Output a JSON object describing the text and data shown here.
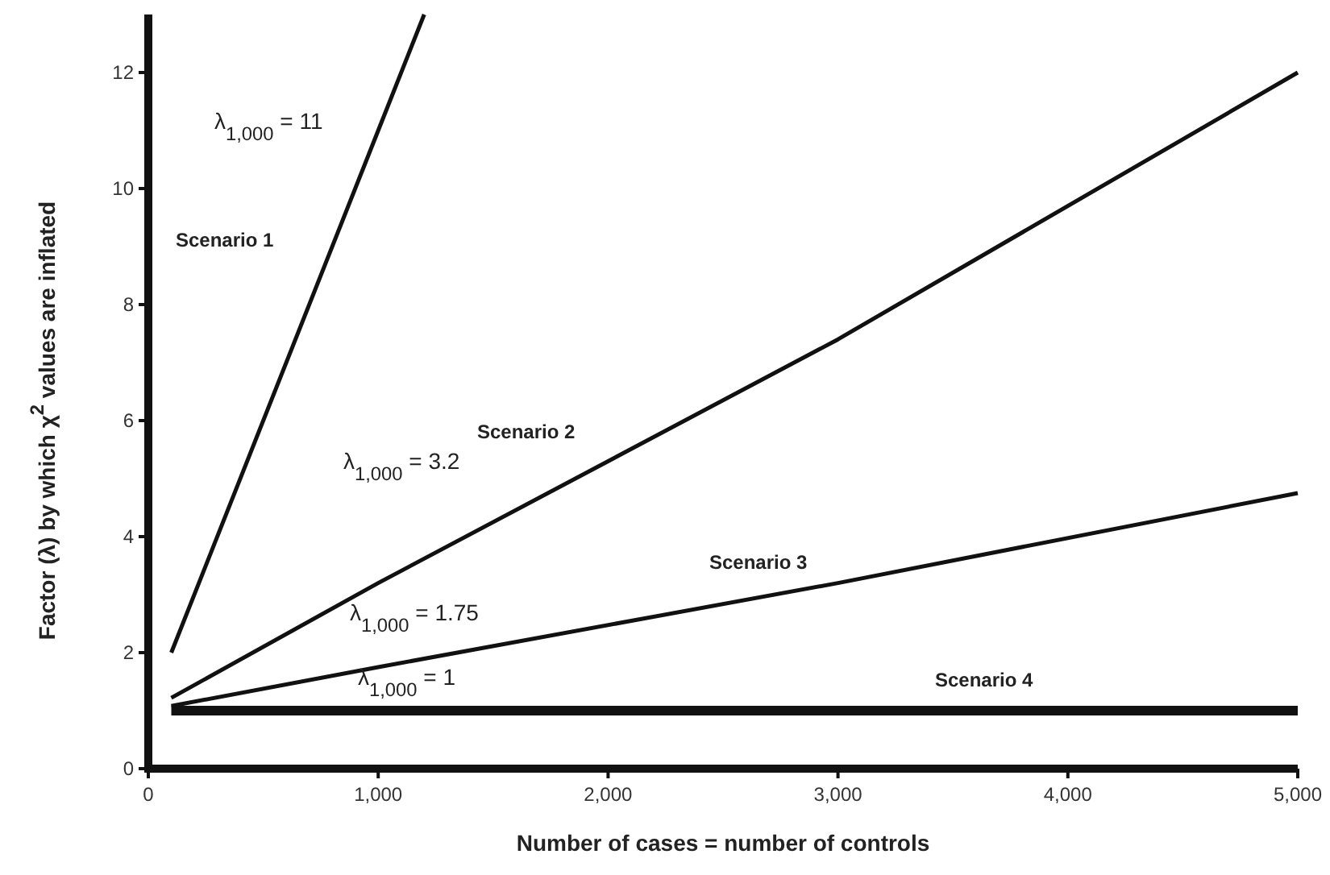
{
  "chart_data": {
    "type": "line",
    "xlabel": "Number of cases = number of controls",
    "ylabel": "Factor (λ) by which χ$^{2}$ values are inflated",
    "xlim": [
      0,
      5000
    ],
    "ylim": [
      0,
      13
    ],
    "xticks": [
      0,
      {
        "value": 1000,
        "label": "1,000"
      },
      {
        "value": 2000,
        "label": "2,000"
      },
      {
        "value": 3000,
        "label": "3,000"
      },
      {
        "value": 4000,
        "label": "4,000"
      },
      {
        "value": 5000,
        "label": "5,000"
      }
    ],
    "yticks": [
      0,
      2,
      4,
      6,
      8,
      10,
      12
    ],
    "grid": false,
    "marker": "none",
    "line_style": "solid",
    "series": [
      {
        "name": "Scenario 1",
        "color": "#111111",
        "x": [
          100,
          1000,
          1200
        ],
        "values": [
          2,
          11,
          13
        ]
      },
      {
        "name": "Scenario 2",
        "color": "#111111",
        "x": [
          100,
          1000,
          3000,
          5000
        ],
        "values": [
          1.22,
          3.2,
          7.4,
          12
        ]
      },
      {
        "name": "Scenario 3",
        "color": "#111111",
        "x": [
          100,
          1000,
          3000,
          5000
        ],
        "values": [
          1.08,
          1.75,
          3.2,
          4.75
        ]
      },
      {
        "name": "Scenario 4",
        "color": "#111111",
        "x": [
          100,
          1000,
          3000,
          5000
        ],
        "values": [
          1,
          1,
          1,
          1
        ]
      }
    ],
    "annotations": [
      "λ$_{1,000}$ = 11",
      "λ$_{1,000}$ = 3.2",
      "λ$_{1,000}$ = 1.75",
      "λ$_{1,000}$ = 1"
    ]
  }
}
